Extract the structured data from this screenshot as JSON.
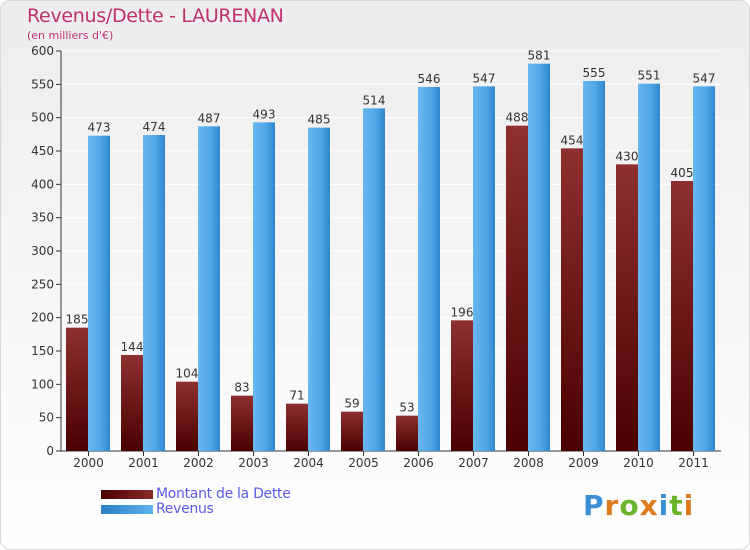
{
  "chart_data": {
    "type": "bar",
    "title": "Revenus/Dette - LAURENAN",
    "subtitle": "(en milliers d'€)",
    "categories": [
      "2000",
      "2001",
      "2002",
      "2003",
      "2004",
      "2005",
      "2006",
      "2007",
      "2008",
      "2009",
      "2010",
      "2011"
    ],
    "series": [
      {
        "name": "Montant de la Dette",
        "color": "#7a1c1c",
        "values": [
          185,
          144,
          104,
          83,
          71,
          59,
          53,
          196,
          488,
          454,
          430,
          405
        ]
      },
      {
        "name": "Revenus",
        "color": "#3f9be0",
        "values": [
          473,
          474,
          487,
          493,
          485,
          514,
          546,
          547,
          581,
          555,
          551,
          547
        ]
      }
    ],
    "ylim": [
      0,
      600
    ],
    "yticks": [
      0,
      50,
      100,
      150,
      200,
      250,
      300,
      350,
      400,
      450,
      500,
      550,
      600
    ],
    "grid": true,
    "legend_position": "bottom-left"
  },
  "logo": {
    "letters": [
      "P",
      "r",
      "o",
      "x",
      "i",
      "t",
      "i"
    ],
    "colors": [
      "#3a8fd6",
      "#e07a1f",
      "#6bb52c",
      "#e07a1f",
      "#3a8fd6",
      "#6bb52c",
      "#e07a1f"
    ]
  }
}
